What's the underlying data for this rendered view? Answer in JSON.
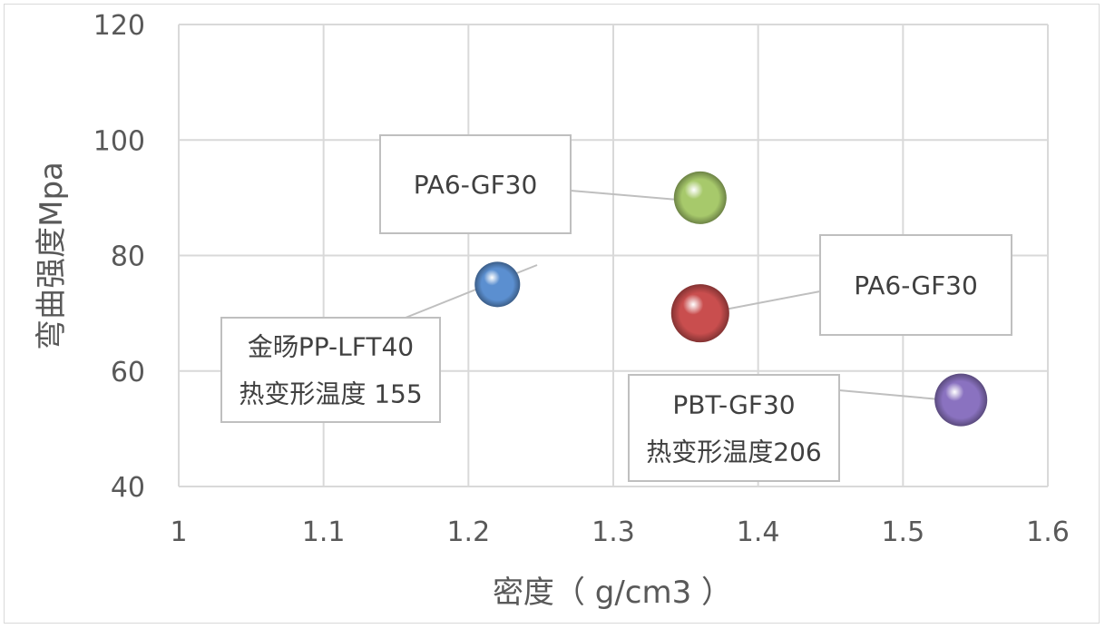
{
  "chart_data": {
    "type": "scatter",
    "title": "",
    "xlabel": "密度（ g/cm3 ）",
    "ylabel": "弯曲强度Mpa",
    "xlim": [
      1,
      1.6
    ],
    "ylim": [
      40,
      120
    ],
    "x_ticks": [
      "1",
      "1.1",
      "1.2",
      "1.3",
      "1.4",
      "1.5",
      "1.6"
    ],
    "y_ticks": [
      "40",
      "60",
      "80",
      "100",
      "120"
    ],
    "grid": true,
    "legend": "none",
    "points": [
      {
        "x": 1.22,
        "y": 75,
        "color": "#5b8fd0",
        "labels": [
          "金旸PP-LFT40",
          "热变形温度 155"
        ]
      },
      {
        "x": 1.36,
        "y": 90,
        "color": "#a7c96b",
        "labels": [
          "PA6-GF30"
        ]
      },
      {
        "x": 1.36,
        "y": 70,
        "color": "#c94e4e",
        "labels": [
          "PA6-GF30"
        ]
      },
      {
        "x": 1.54,
        "y": 55,
        "color": "#8a72c0",
        "labels": [
          "PBT-GF30",
          "热变形温度206"
        ]
      }
    ]
  }
}
